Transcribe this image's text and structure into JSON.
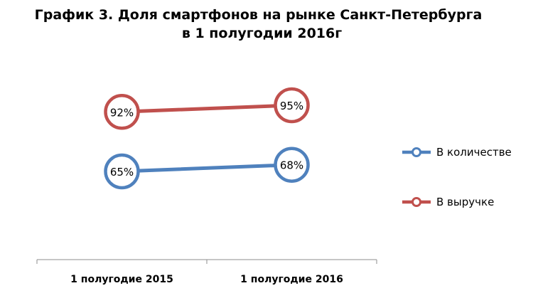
{
  "chart_data": {
    "type": "line",
    "title": "График 3. Доля смартфонов на рынке Санкт-Петербурга в 1 полугодии 2016г",
    "title_lines": [
      "График 3. Доля смартфонов на рынке Санкт-Петербурга",
      "в 1 полугодии 2016г"
    ],
    "categories": [
      "1 полугодие 2015",
      "1 полугодие 2016"
    ],
    "series": [
      {
        "name": "В количестве",
        "values": [
          65,
          68
        ],
        "labels": [
          "65%",
          "68%"
        ],
        "color": "#4f81bd"
      },
      {
        "name": "В выручке",
        "values": [
          92,
          95
        ],
        "labels": [
          "92%",
          "95%"
        ],
        "color": "#c0504d"
      }
    ],
    "ylim": [
      25,
      115
    ],
    "xlabel": "",
    "ylabel": "",
    "grid": false,
    "legend": "right",
    "marker_fill": "#ffffff"
  }
}
